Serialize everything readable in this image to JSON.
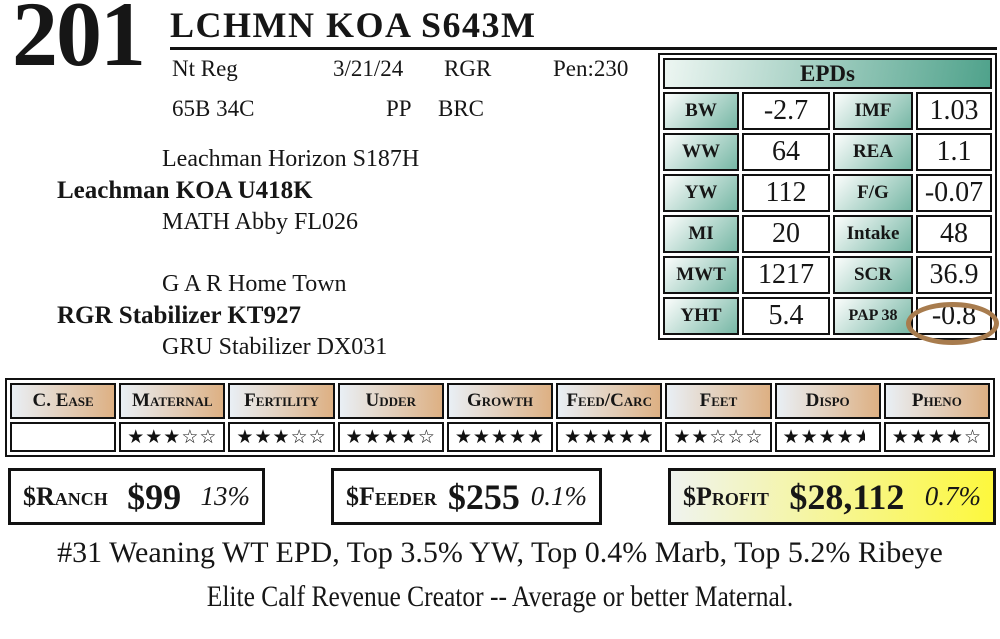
{
  "lot": {
    "number": "201",
    "name": "LCHMN KOA S643M"
  },
  "info": {
    "registration": "Nt Reg",
    "birth_date": "3/21/24",
    "brand": "RGR",
    "pen": "Pen:230",
    "tattoo": "65B 34C",
    "polled": "PP",
    "breed": "BRC"
  },
  "pedigree": {
    "sire_line": {
      "grandsire": "Leachman Horizon S187H",
      "sire": "Leachman KOA U418K",
      "granddam": "MATH Abby FL026"
    },
    "dam_line": {
      "grandsire": "G A R Home Town",
      "dam": "RGR Stabilizer KT927",
      "granddam": "GRU Stabilizer DX031"
    }
  },
  "epds": {
    "title": "EPDs",
    "rows": [
      {
        "l1": "BW",
        "v1": "-2.7",
        "l2": "IMF",
        "v2": "1.03"
      },
      {
        "l1": "WW",
        "v1": "64",
        "l2": "REA",
        "v2": "1.1"
      },
      {
        "l1": "YW",
        "v1": "112",
        "l2": "F/G",
        "v2": "-0.07"
      },
      {
        "l1": "MI",
        "v1": "20",
        "l2": "Intake",
        "v2": "48"
      },
      {
        "l1": "MWT",
        "v1": "1217",
        "l2": "SCR",
        "v2": "36.9"
      },
      {
        "l1": "YHT",
        "v1": "5.4",
        "l2": "PAP 38",
        "v2": "-0.8"
      }
    ],
    "circled_label": "PAP 38",
    "circled_value": "-0.8"
  },
  "ratings": {
    "max_stars": 5,
    "columns": [
      {
        "label": "C. Ease",
        "stars": null
      },
      {
        "label": "Maternal",
        "stars": 3
      },
      {
        "label": "Fertility",
        "stars": 3
      },
      {
        "label": "Udder",
        "stars": 4
      },
      {
        "label": "Growth",
        "stars": 5
      },
      {
        "label": "Feed/Carc",
        "stars": 5
      },
      {
        "label": "Feet",
        "stars": 2
      },
      {
        "label": "Dispo",
        "stars": 4.5
      },
      {
        "label": "Pheno",
        "stars": 4
      }
    ]
  },
  "profit_indexes": [
    {
      "label": "$Ranch",
      "amount": "$99",
      "percentile": "13%",
      "highlight": false
    },
    {
      "label": "$Feeder",
      "amount": "$255",
      "percentile": "0.1%",
      "highlight": false
    },
    {
      "label": "$Profit",
      "amount": "$28,112",
      "percentile": "0.7%",
      "highlight": true
    }
  ],
  "footnotes": [
    "#31 Weaning WT EPD, Top 3.5% YW, Top 0.4% Marb, Top 5.2% Ribeye",
    "Elite Calf Revenue Creator -- Average or better Maternal."
  ],
  "icons": {
    "star_filled": "★",
    "star_empty": "☆",
    "highlight_circle": "ellipse-annotation"
  },
  "colors": {
    "teal_dark": "#4fa28b",
    "teal_light": "#edf6f2",
    "tan_dark": "#ddb083",
    "tan_light": "#e9eff5",
    "yellow_highlight": "#fdf83d",
    "yellow_light": "#eff3ef",
    "circle_brown": "#a87c4e",
    "border_black": "#111111"
  }
}
